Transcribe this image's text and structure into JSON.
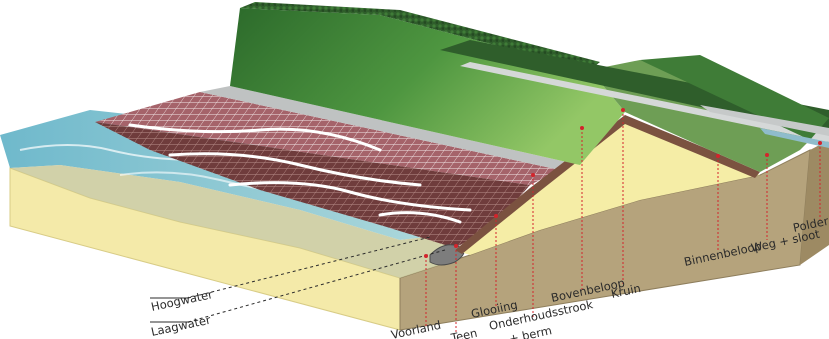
{
  "diagram": {
    "labels": {
      "hoogwater": "Hoogwater",
      "laagwater": "Laagwater",
      "voorland": "Voorland",
      "teen": "Teen",
      "glooiing": "Glooiing",
      "onderhoudsstrook": "Onderhoudsstrook",
      "berm": "+ berm",
      "bovenbeloop": "Bovenbeloop",
      "kruin": "Kruin",
      "binnenbeloop": "Binnenbeloop",
      "weg_sloot": "Weg + sloot",
      "polder": "Polder"
    },
    "colors": {
      "sand": "#f3e9a8",
      "soil": "#b3a17a",
      "clay": "#7a5040",
      "grass_dark": "#2f6b2c",
      "grass_light": "#8cc060",
      "revetment": "#9c5a5e",
      "water": "#6fb6c6",
      "marker": "#d3242c"
    }
  }
}
